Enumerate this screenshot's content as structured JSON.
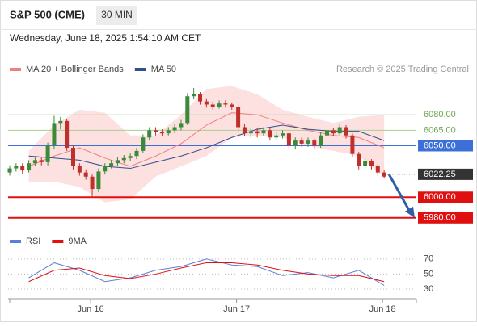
{
  "header": {
    "title": "S&P 500 (CME)",
    "interval": "30 MIN",
    "timestamp": "Wednesday, June 18, 2025 1:54:10 AM CET"
  },
  "chart_data": {
    "type": "candlestick",
    "legend": [
      {
        "name": "MA 20 + Bollinger Bands",
        "color": "#f08080"
      },
      {
        "name": "MA 50",
        "color": "#2f4f8f"
      }
    ],
    "credit": "Research © 2025 Trading Central",
    "ylim": [
      5972,
      6117
    ],
    "up_color": "#3a8a3a",
    "down_color": "#c0302a",
    "candles": [
      [
        6024,
        6031,
        6021,
        6028
      ],
      [
        6028,
        6033,
        6025,
        6030
      ],
      [
        6030,
        6033,
        6023,
        6026
      ],
      [
        6026,
        6036,
        6024,
        6033
      ],
      [
        6033,
        6039,
        6030,
        6036
      ],
      [
        6036,
        6039,
        6031,
        6034
      ],
      [
        6034,
        6053,
        6031,
        6050
      ],
      [
        6050,
        6079,
        6047,
        6072
      ],
      [
        6072,
        6078,
        6066,
        6074
      ],
      [
        6074,
        6076,
        6045,
        6048
      ],
      [
        6048,
        6051,
        6027,
        6030
      ],
      [
        6030,
        6033,
        6021,
        6024
      ],
      [
        6024,
        6027,
        6017,
        6020
      ],
      [
        6020,
        6022,
        6000,
        6008
      ],
      [
        6008,
        6028,
        6005,
        6025
      ],
      [
        6025,
        6033,
        6022,
        6030
      ],
      [
        6030,
        6036,
        6028,
        6033
      ],
      [
        6033,
        6039,
        6030,
        6036
      ],
      [
        6036,
        6041,
        6033,
        6038
      ],
      [
        6038,
        6043,
        6035,
        6040
      ],
      [
        6040,
        6048,
        6037,
        6045
      ],
      [
        6045,
        6061,
        6043,
        6058
      ],
      [
        6058,
        6068,
        6055,
        6065
      ],
      [
        6065,
        6068,
        6060,
        6063
      ],
      [
        6063,
        6066,
        6059,
        6062
      ],
      [
        6062,
        6068,
        6060,
        6065
      ],
      [
        6065,
        6071,
        6062,
        6068
      ],
      [
        6068,
        6075,
        6065,
        6072
      ],
      [
        6072,
        6101,
        6070,
        6098
      ],
      [
        6098,
        6106,
        6095,
        6100
      ],
      [
        6100,
        6102,
        6090,
        6093
      ],
      [
        6093,
        6096,
        6087,
        6090
      ],
      [
        6090,
        6093,
        6085,
        6088
      ],
      [
        6088,
        6094,
        6086,
        6091
      ],
      [
        6091,
        6094,
        6087,
        6090
      ],
      [
        6090,
        6092,
        6085,
        6088
      ],
      [
        6088,
        6090,
        6064,
        6068
      ],
      [
        6068,
        6071,
        6059,
        6062
      ],
      [
        6062,
        6067,
        6058,
        6064
      ],
      [
        6064,
        6067,
        6058,
        6062
      ],
      [
        6062,
        6068,
        6059,
        6065
      ],
      [
        6065,
        6067,
        6055,
        6058
      ],
      [
        6058,
        6063,
        6055,
        6060
      ],
      [
        6060,
        6065,
        6057,
        6062
      ],
      [
        6062,
        6064,
        6047,
        6050
      ],
      [
        6050,
        6058,
        6047,
        6055
      ],
      [
        6055,
        6058,
        6049,
        6052
      ],
      [
        6052,
        6058,
        6049,
        6055
      ],
      [
        6055,
        6057,
        6047,
        6050
      ],
      [
        6050,
        6063,
        6048,
        6060
      ],
      [
        6060,
        6068,
        6057,
        6065
      ],
      [
        6065,
        6067,
        6059,
        6062
      ],
      [
        6062,
        6071,
        6060,
        6068
      ],
      [
        6068,
        6070,
        6057,
        6060
      ],
      [
        6060,
        6062,
        6039,
        6042
      ],
      [
        6042,
        6044,
        6027,
        6030
      ],
      [
        6030,
        6038,
        6028,
        6035
      ],
      [
        6035,
        6037,
        6027,
        6030
      ],
      [
        6030,
        6032,
        6021,
        6024
      ],
      [
        6024,
        6026,
        6018,
        6020
      ]
    ],
    "ma20": [
      6030,
      6040,
      6048,
      6038,
      6030,
      6040,
      6052,
      6070,
      6082,
      6080,
      6072,
      6065,
      6060,
      6058,
      6048
    ],
    "band_upper": [
      6045,
      6070,
      6085,
      6082,
      6060,
      6060,
      6080,
      6105,
      6108,
      6100,
      6085,
      6078,
      6072,
      6078,
      6080
    ],
    "band_lower": [
      6015,
      6015,
      6010,
      5995,
      5998,
      6020,
      6030,
      6040,
      6058,
      6060,
      6058,
      6050,
      6045,
      6040,
      6020
    ],
    "ma50": [
      6040,
      6038,
      6036,
      6030,
      6028,
      6034,
      6040,
      6048,
      6058,
      6066,
      6070,
      6066,
      6064,
      6064,
      6055
    ],
    "levels": [
      {
        "value": 6080,
        "label": "6080.00",
        "color": "#a8d08d",
        "line_width": 1,
        "label_box": false
      },
      {
        "value": 6065,
        "label": "6065.00",
        "color": "#a8d08d",
        "line_width": 1,
        "label_box": false
      },
      {
        "value": 6050,
        "label": "6050.00",
        "color": "#3c6fd8",
        "line_width": 1,
        "label_box": true
      },
      {
        "value": 6000,
        "label": "6000.00",
        "color": "#e01010",
        "line_width": 2,
        "label_box": true
      },
      {
        "value": 5980,
        "label": "5980.00",
        "color": "#e01010",
        "line_width": 2,
        "label_box": true
      }
    ],
    "last": {
      "value": 6022.25,
      "label": "6022.25",
      "color": "#333333"
    },
    "x_labels": [
      "Jun 16",
      "Jun 17",
      "Jun 18"
    ],
    "rsi": {
      "legend": [
        {
          "name": "RSI",
          "color": "#5b7fd8"
        },
        {
          "name": "9MA",
          "color": "#e01010"
        }
      ],
      "ylim": [
        15,
        87
      ],
      "yticks": [
        30,
        50,
        70
      ],
      "values": [
        45,
        65,
        55,
        40,
        45,
        55,
        60,
        70,
        62,
        60,
        48,
        52,
        45,
        55,
        35
      ],
      "ma": [
        40,
        55,
        58,
        48,
        44,
        50,
        58,
        65,
        65,
        62,
        55,
        50,
        48,
        48,
        40
      ]
    }
  }
}
